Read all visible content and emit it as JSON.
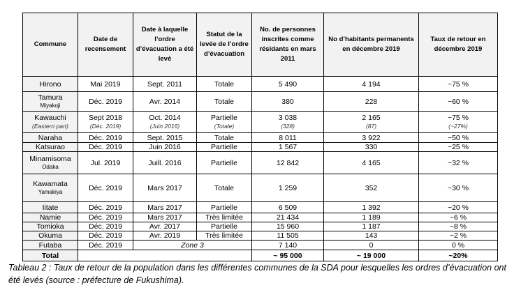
{
  "headers": [
    "Commune",
    "Date de recensement",
    "Date à laquelle l’ordre d’évacuation a été levé",
    "Statut de la levée de l’ordre d’évacuation",
    "No. de personnes inscrites comme résidants en mars 2011",
    "No d’habitants permanents en décembre 2019",
    "Taux de retour en décembre 2019"
  ],
  "rows": [
    {
      "commune": "Hirono",
      "sub": "",
      "census": "Mai 2019",
      "lifted": "Sept. 2011",
      "status": "Totale",
      "pop2011": "5 490",
      "pop2019": "4 194",
      "rate": "~75 %"
    },
    {
      "commune": "Tamura",
      "sub": "Miyakoji",
      "census": "Déc. 2019",
      "lifted": "Avr. 2014",
      "status": "Totale",
      "pop2011": "380",
      "pop2019": "228",
      "rate": "~60 %"
    },
    {
      "commune": "Kawauchi",
      "sub": "(Eastern part)",
      "census": "Sept 2018",
      "census_sub": "(Déc. 2019)",
      "lifted": "Oct. 2014",
      "lifted_sub": "(Juin 2016)",
      "status": "Partielle",
      "status_sub": "(Totale)",
      "pop2011": "3 038",
      "pop2011_sub": "(328)",
      "pop2019": "2 165",
      "pop2019_sub": "(87)",
      "rate": "~75 %",
      "rate_sub": "(~27%)"
    },
    {
      "commune": "Naraha",
      "sub": "",
      "census": "Déc. 2019",
      "lifted": "Sept. 2015",
      "status": "Totale",
      "pop2011": "8 011",
      "pop2019": "3 922",
      "rate": "~50 %"
    },
    {
      "commune": "Katsurao",
      "sub": "",
      "census": "Déc. 2019",
      "lifted": "Juin 2016",
      "status": "Partielle",
      "pop2011": "1 567",
      "pop2019": "330",
      "rate": "~25  %"
    },
    {
      "commune": "Minamisoma",
      "sub": "Odaka",
      "census": "Jul. 2019",
      "lifted": "Juill. 2016",
      "status": "Partielle",
      "pop2011": "12 842",
      "pop2019": "4 165",
      "rate": "~32 %"
    },
    {
      "commune": "Kawamata",
      "sub": "Yamakiya",
      "census": "Déc. 2019",
      "lifted": "Mars 2017",
      "status": "Totale",
      "pop2011": "1 259",
      "pop2019": "352",
      "rate": "~30 %"
    },
    {
      "commune": "Iitate",
      "sub": "",
      "census": "Déc. 2019",
      "lifted": "Mars 2017",
      "status": "Partielle",
      "pop2011": "6 509",
      "pop2019": "1 392",
      "rate": "~20 %"
    },
    {
      "commune": "Namie",
      "sub": "",
      "census": "Déc. 2019",
      "lifted": "Mars 2017",
      "status": "Très limitée",
      "pop2011": "21 434",
      "pop2019": "1 189",
      "rate": "~6 %"
    },
    {
      "commune": "Tomioka",
      "sub": "",
      "census": "Déc. 2019",
      "lifted": "Avr. 2017",
      "status": "Partielle",
      "pop2011": "15 960",
      "pop2019": "1 187",
      "rate": "~8 %"
    },
    {
      "commune": "Okuma",
      "sub": "",
      "census": "Déc. 2019",
      "lifted": "Avr. 2019",
      "status": "Très limitée",
      "pop2011": "11 505",
      "pop2019": "143",
      "rate": "~2 %"
    }
  ],
  "futaba": {
    "commune": "Futaba",
    "census": "Déc. 2019",
    "zone": "Zone 3",
    "pop2011": "7 140",
    "pop2019": "0",
    "rate": "0 %"
  },
  "total": {
    "label": "Total",
    "pop2011": "~ 95 000",
    "pop2019": "~ 19 000",
    "rate": "~20%"
  },
  "caption": "Tableau 2 : Taux de retour de la population dans les différentes communes de la SDA pour lesquelles les ordres d’évacuation ont été levés (source : préfecture de Fukushima)."
}
